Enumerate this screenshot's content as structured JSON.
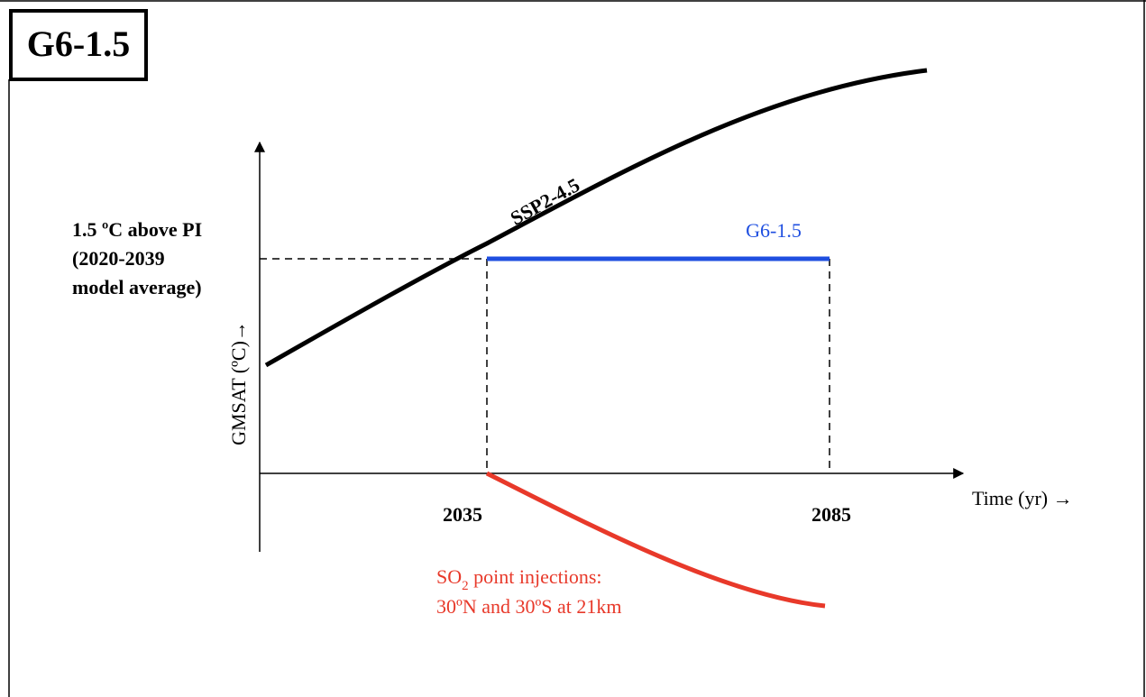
{
  "panel_label": "G6-1.5",
  "y_axis_label": "GMSAT (ºC)→",
  "x_axis_label": "Time (yr) →",
  "threshold_label": [
    "1.5 ºC above PI",
    "(2020-2039",
    "model average)"
  ],
  "x_markers": [
    "2035",
    "2085"
  ],
  "curves": [
    {
      "label": "SSP2-4.5"
    },
    {
      "label": "G6-1.5"
    }
  ],
  "injection_label": {
    "line1": [
      "SO",
      "2",
      " point injections:"
    ],
    "line2": "30ºN and 30ºS at 21km"
  }
}
